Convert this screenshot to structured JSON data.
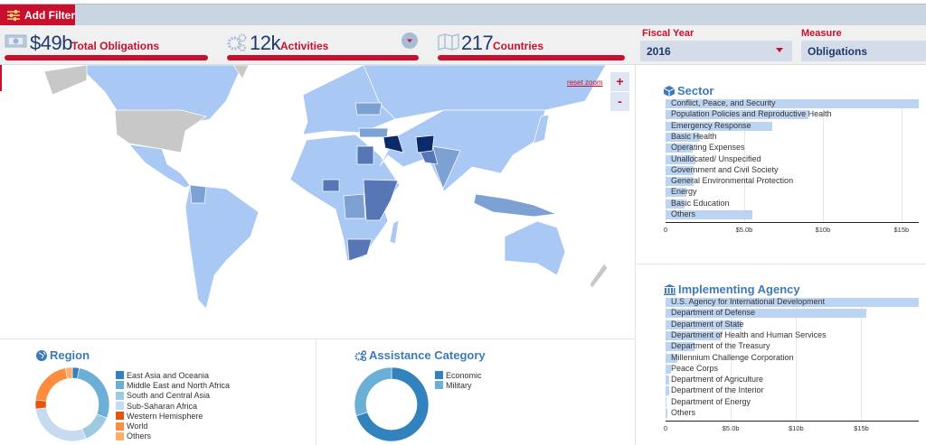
{
  "toolbar": {
    "add_filter_label": "Add Filter",
    "filter_icon": "sliders-icon"
  },
  "stats": [
    {
      "value": "$49b",
      "label": "Total Obligations",
      "icon": "money-icon"
    },
    {
      "value": "12k",
      "label": "Activities",
      "icon": "gears-icon"
    },
    {
      "value": "217",
      "label": "Countries",
      "icon": "map-icon"
    }
  ],
  "filters": {
    "fiscal_year": {
      "label": "Fiscal Year",
      "value": "2016"
    },
    "measure": {
      "label": "Measure",
      "value": "Obligations"
    }
  },
  "map": {
    "reset_zoom": "reset zoom",
    "zoom_in": "+",
    "zoom_out": "-",
    "colors": {
      "base": "#a9c8f3",
      "low": "#7ea1d4",
      "mid": "#5676b6",
      "high": "#0b2a67",
      "no_data": "#c8c8c8"
    }
  },
  "colors": {
    "accent": "#c8102e",
    "navy": "#1f3a6e",
    "title_blue": "#3d7ab8",
    "bar": "#bcd3f2"
  },
  "chart_data": [
    {
      "type": "bar",
      "orientation": "horizontal",
      "title": "Sector",
      "icon": "cube-icon",
      "categories": [
        "Conflict, Peace, and Security",
        "Population Policies and Reproductive Health",
        "Emergency Response",
        "Basic Health",
        "Operating Expenses",
        "Unallocated/ Unspecified",
        "Government and Civil Society",
        "General Environmental Protection",
        "Energy",
        "Basic Education",
        "Others"
      ],
      "values": [
        16.1,
        9.1,
        6.8,
        2.2,
        1.7,
        1.9,
        1.8,
        1.8,
        1.3,
        1.2,
        5.5
      ],
      "unit": "billion USD",
      "xlim": [
        0,
        16.1
      ],
      "ticks": [
        0,
        5,
        10,
        15
      ],
      "tick_labels": [
        "0",
        "$5.0b",
        "$10b",
        "$15b"
      ],
      "grid": true
    },
    {
      "type": "bar",
      "orientation": "horizontal",
      "title": "Implementing Agency",
      "icon": "bank-icon",
      "categories": [
        "U.S. Agency for International Development",
        "Department of Defense",
        "Department of State",
        "Department of Health and Human Services",
        "Department of the Treasury",
        "Millennium Challenge Corporation",
        "Peace Corps",
        "Department of Agriculture",
        "Department of the Interior",
        "Department of Energy",
        "Others"
      ],
      "values": [
        19.4,
        15.4,
        5.8,
        4.2,
        2.2,
        0.9,
        0.4,
        0.3,
        0.25,
        0.1,
        0.15
      ],
      "unit": "billion USD",
      "xlim": [
        0,
        19.4
      ],
      "ticks": [
        0,
        5,
        10,
        15
      ],
      "tick_labels": [
        "0",
        "$5.0b",
        "$10b",
        "$15b"
      ],
      "grid": true
    },
    {
      "type": "pie",
      "donut": true,
      "title": "Region",
      "icon": "globe-icon",
      "categories": [
        "East Asia and Oceania",
        "Middle East and North Africa",
        "South and Central Asia",
        "Sub-Saharan Africa",
        "Western Hemisphere",
        "World",
        "Others"
      ],
      "values": [
        3,
        28,
        13,
        29,
        4,
        20,
        3
      ],
      "unit": "percent",
      "colors": [
        "#3182bd",
        "#6baed6",
        "#9ecae1",
        "#c6dbef",
        "#e6550d",
        "#fd8d3c",
        "#fdae6b"
      ],
      "legend": "right"
    },
    {
      "type": "pie",
      "donut": true,
      "title": "Assistance Category",
      "icon": "gears-icon",
      "categories": [
        "Economic",
        "Military"
      ],
      "values": [
        70,
        30
      ],
      "unit": "percent",
      "colors": [
        "#3182bd",
        "#6baed6"
      ],
      "legend": "right"
    }
  ]
}
